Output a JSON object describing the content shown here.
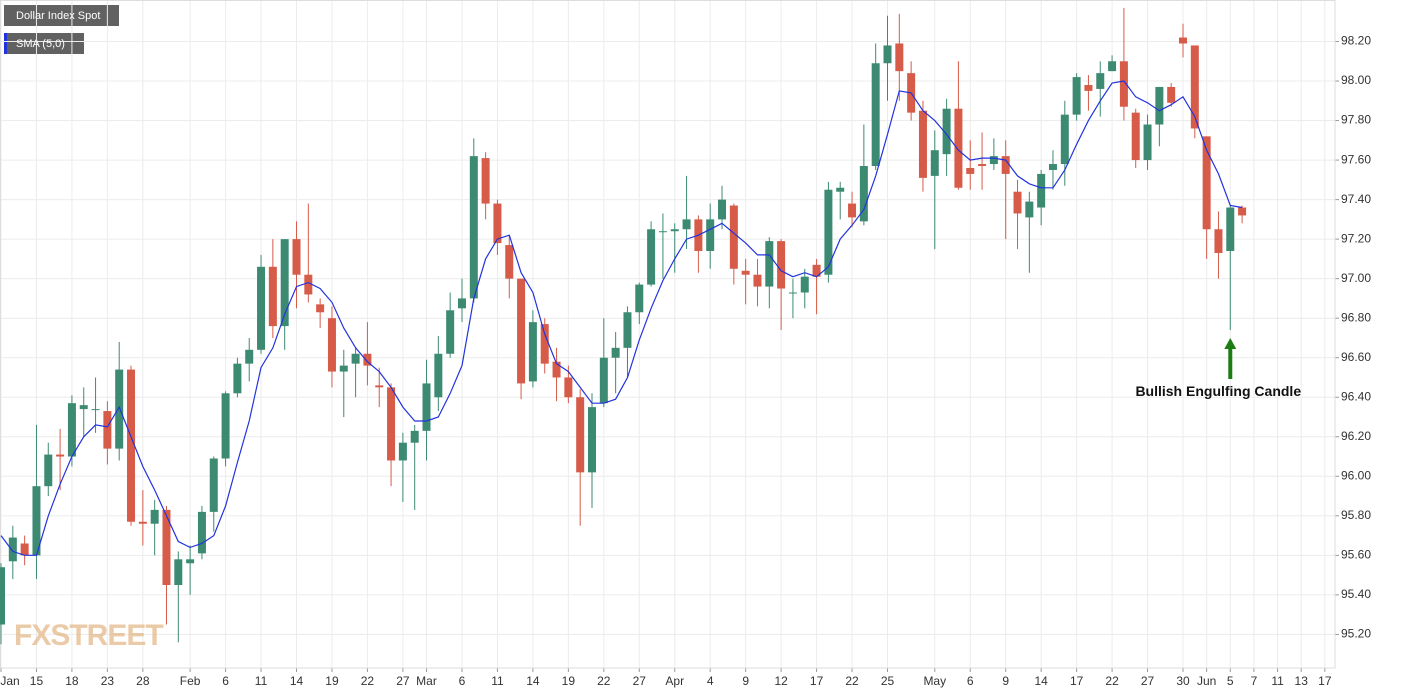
{
  "chart_data": {
    "type": "candlestick",
    "title": "Dollar Index Spot",
    "categories": [
      "Jan",
      null,
      null,
      "15",
      null,
      null,
      "18",
      null,
      null,
      "23",
      null,
      null,
      "28",
      null,
      null,
      null,
      "Feb",
      null,
      null,
      "6",
      null,
      null,
      "11",
      null,
      null,
      "14",
      null,
      null,
      "19",
      null,
      null,
      "22",
      null,
      null,
      "27",
      null,
      "Mar",
      null,
      null,
      "6",
      null,
      null,
      "11",
      null,
      null,
      "14",
      null,
      null,
      "19",
      null,
      null,
      "22",
      null,
      null,
      "27",
      null,
      null,
      "Apr",
      null,
      null,
      "4",
      null,
      null,
      "9",
      null,
      null,
      "12",
      null,
      null,
      "17",
      null,
      null,
      "22",
      null,
      null,
      "25",
      null,
      null,
      null,
      "May",
      null,
      null,
      "6",
      null,
      null,
      "9",
      null,
      null,
      "14",
      null,
      null,
      "17",
      null,
      null,
      "22",
      null,
      null,
      "27",
      null,
      null,
      "30",
      null,
      "Jun",
      null,
      "5",
      null,
      "7",
      null,
      "11",
      null,
      "13",
      null,
      "17"
    ],
    "open": [
      95.25,
      95.57,
      95.66,
      95.6,
      95.95,
      96.11,
      96.1,
      96.34,
      96.34,
      96.33,
      96.14,
      96.54,
      95.77,
      95.76,
      95.83,
      95.45,
      95.56,
      95.61,
      95.82,
      96.09,
      96.42,
      96.57,
      96.64,
      97.06,
      96.76,
      97.2,
      97.02,
      96.87,
      96.8,
      96.53,
      96.57,
      96.62,
      96.46,
      96.45,
      96.08,
      96.17,
      96.23,
      96.4,
      96.62,
      96.85,
      96.9,
      97.61,
      97.38,
      97.17,
      97.0,
      96.48,
      96.77,
      96.58,
      96.5,
      96.4,
      96.02,
      96.37,
      96.6,
      96.65,
      96.83,
      96.97,
      97.24,
      97.24,
      97.25,
      97.3,
      97.14,
      97.3,
      97.37,
      97.04,
      97.02,
      96.96,
      97.19,
      96.93,
      96.93,
      97.07,
      97.02,
      97.44,
      97.38,
      97.29,
      97.57,
      98.09,
      98.19,
      98.04,
      97.85,
      97.52,
      97.63,
      97.86,
      97.56,
      97.58,
      97.58,
      97.62,
      97.44,
      97.31,
      97.36,
      97.55,
      97.58,
      97.83,
      97.98,
      97.96,
      98.05,
      98.1,
      97.84,
      97.6,
      97.78,
      97.97,
      98.22,
      98.18,
      97.72,
      97.25,
      97.14,
      97.36,
      null,
      null,
      null,
      null,
      null,
      null,
      null
    ],
    "high": [
      95.56,
      95.75,
      95.7,
      96.26,
      96.17,
      96.24,
      96.41,
      96.45,
      96.5,
      96.38,
      96.68,
      96.56,
      95.93,
      95.88,
      95.85,
      95.62,
      95.65,
      95.85,
      96.1,
      96.43,
      96.6,
      96.7,
      97.12,
      97.2,
      97.2,
      97.29,
      97.38,
      96.9,
      96.86,
      96.64,
      96.65,
      96.78,
      96.55,
      96.47,
      96.22,
      96.26,
      96.59,
      96.71,
      96.93,
      97.0,
      97.71,
      97.64,
      97.4,
      97.22,
      97.0,
      96.84,
      96.8,
      96.65,
      96.56,
      96.44,
      96.42,
      96.8,
      96.73,
      96.86,
      96.98,
      97.29,
      97.33,
      97.28,
      97.52,
      97.32,
      97.38,
      97.47,
      97.38,
      97.1,
      97.1,
      97.21,
      97.2,
      97.0,
      97.05,
      97.1,
      97.49,
      97.49,
      97.44,
      97.78,
      98.19,
      98.33,
      98.34,
      98.1,
      97.9,
      97.75,
      97.91,
      98.1,
      97.7,
      97.74,
      97.71,
      97.7,
      97.5,
      97.44,
      97.55,
      97.65,
      97.9,
      98.04,
      98.03,
      98.1,
      98.13,
      98.37,
      97.86,
      97.83,
      97.97,
      97.99,
      98.29,
      98.18,
      97.72,
      97.34,
      97.37,
      97.37,
      null,
      null,
      null,
      null,
      null,
      null,
      null
    ],
    "low": [
      95.15,
      95.48,
      95.55,
      95.48,
      95.9,
      95.93,
      96.05,
      96.2,
      96.22,
      96.06,
      96.08,
      95.75,
      95.65,
      95.6,
      95.25,
      95.16,
      95.4,
      95.58,
      95.72,
      96.05,
      96.4,
      96.48,
      96.62,
      96.7,
      96.64,
      96.85,
      96.88,
      96.75,
      96.45,
      96.3,
      96.4,
      96.46,
      96.35,
      95.95,
      95.87,
      95.83,
      96.08,
      96.33,
      96.6,
      96.78,
      96.88,
      97.3,
      97.12,
      96.9,
      96.39,
      96.45,
      96.52,
      96.38,
      96.37,
      95.75,
      95.84,
      96.35,
      96.42,
      96.5,
      96.77,
      96.96,
      97.0,
      97.03,
      97.15,
      97.03,
      97.05,
      97.25,
      96.97,
      96.87,
      96.86,
      96.85,
      96.74,
      96.8,
      96.85,
      96.82,
      96.98,
      97.3,
      97.26,
      97.27,
      97.55,
      97.9,
      97.9,
      97.8,
      97.44,
      97.15,
      97.52,
      97.45,
      97.45,
      97.45,
      97.55,
      97.2,
      97.15,
      97.03,
      97.27,
      97.45,
      97.47,
      97.8,
      97.85,
      97.82,
      98.05,
      97.8,
      97.56,
      97.55,
      97.67,
      97.87,
      98.12,
      97.71,
      97.1,
      97.0,
      96.74,
      97.28,
      null,
      null,
      null,
      null,
      null,
      null,
      null
    ],
    "close": [
      95.54,
      95.69,
      95.6,
      95.95,
      96.11,
      96.1,
      96.37,
      96.36,
      96.34,
      96.14,
      96.54,
      95.77,
      95.76,
      95.83,
      95.45,
      95.58,
      95.58,
      95.82,
      96.09,
      96.42,
      96.57,
      96.64,
      97.06,
      96.76,
      97.2,
      97.02,
      96.92,
      96.83,
      96.53,
      96.56,
      96.62,
      96.56,
      96.45,
      96.08,
      96.17,
      96.23,
      96.47,
      96.62,
      96.84,
      96.9,
      97.62,
      97.38,
      97.18,
      97.0,
      96.47,
      96.78,
      96.57,
      96.5,
      96.4,
      96.02,
      96.35,
      96.6,
      96.65,
      96.83,
      96.97,
      97.25,
      97.24,
      97.25,
      97.3,
      97.14,
      97.3,
      97.4,
      97.05,
      97.02,
      96.96,
      97.19,
      96.95,
      96.93,
      97.01,
      97.01,
      97.45,
      97.46,
      97.31,
      97.57,
      98.09,
      98.18,
      98.05,
      97.84,
      97.51,
      97.65,
      97.86,
      97.46,
      97.53,
      97.57,
      97.62,
      97.53,
      97.33,
      97.39,
      97.53,
      97.58,
      97.83,
      98.02,
      97.95,
      98.04,
      98.1,
      97.87,
      97.6,
      97.78,
      97.97,
      97.89,
      98.19,
      97.76,
      97.25,
      97.13,
      97.36,
      97.32,
      null,
      null,
      null,
      null,
      null,
      null,
      null
    ],
    "up_color": "#3d8a73",
    "down_color": "#d65b49",
    "series": [
      {
        "name": "SMA (5,0)",
        "color": "#2233dd",
        "values": [
          95.7,
          95.62,
          95.6,
          95.6,
          95.8,
          95.96,
          96.1,
          96.2,
          96.26,
          96.25,
          96.35,
          96.2,
          96.05,
          95.93,
          95.8,
          95.67,
          95.64,
          95.66,
          95.7,
          95.85,
          96.07,
          96.28,
          96.55,
          96.65,
          96.82,
          96.96,
          96.98,
          96.95,
          96.88,
          96.75,
          96.65,
          96.58,
          96.53,
          96.45,
          96.35,
          96.28,
          96.28,
          96.3,
          96.42,
          96.56,
          96.9,
          97.1,
          97.2,
          97.22,
          97.03,
          96.93,
          96.72,
          96.57,
          96.53,
          96.45,
          96.37,
          96.37,
          96.39,
          96.5,
          96.69,
          96.85,
          96.99,
          97.1,
          97.2,
          97.22,
          97.25,
          97.28,
          97.23,
          97.18,
          97.12,
          97.12,
          97.04,
          97.01,
          97.03,
          97.01,
          97.06,
          97.2,
          97.27,
          97.35,
          97.52,
          97.73,
          97.95,
          97.94,
          97.85,
          97.8,
          97.73,
          97.65,
          97.6,
          97.61,
          97.61,
          97.6,
          97.52,
          97.48,
          97.46,
          97.46,
          97.55,
          97.68,
          97.8,
          97.9,
          97.99,
          98.0,
          97.92,
          97.89,
          97.85,
          97.88,
          97.92,
          97.82,
          97.65,
          97.53,
          97.37,
          97.36,
          null,
          null,
          null,
          null,
          null,
          null,
          null
        ]
      }
    ],
    "ylim": [
      95.03,
      98.41
    ],
    "yticks": [
      {
        "value": 95.2,
        "label": "95.20"
      },
      {
        "value": 95.4,
        "label": "95.40"
      },
      {
        "value": 95.6,
        "label": "95.60"
      },
      {
        "value": 95.8,
        "label": "95.80"
      },
      {
        "value": 96.0,
        "label": "96.00"
      },
      {
        "value": 96.2,
        "label": "96.20"
      },
      {
        "value": 96.4,
        "label": "96.40"
      },
      {
        "value": 96.6,
        "label": "96.60"
      },
      {
        "value": 96.8,
        "label": "96.80"
      },
      {
        "value": 97.0,
        "label": "97.00"
      },
      {
        "value": 97.2,
        "label": "97.20"
      },
      {
        "value": 97.4,
        "label": "97.40"
      },
      {
        "value": 97.6,
        "label": "97.60"
      },
      {
        "value": 97.8,
        "label": "97.80"
      },
      {
        "value": 98.0,
        "label": "98.00"
      },
      {
        "value": 98.2,
        "label": "98.20"
      }
    ],
    "grid": true,
    "annotation": "Bullish Engulfing Candle",
    "annotation_color": "#1e7d12",
    "watermark": "FXSTREET"
  }
}
